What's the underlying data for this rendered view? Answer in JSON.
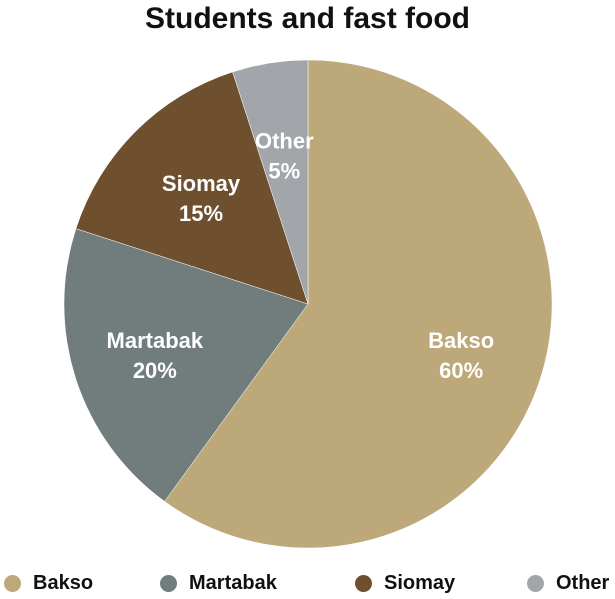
{
  "chart_data": {
    "type": "pie",
    "title": "Students and fast food",
    "categories": [
      "Bakso",
      "Martabak",
      "Siomay",
      "Other"
    ],
    "values": [
      60,
      20,
      15,
      5
    ],
    "value_labels": [
      "60%",
      "20%",
      "15%",
      "5%"
    ],
    "colors": [
      "#BCA879",
      "#717C7C",
      "#6E4F2E",
      "#A2A5AA"
    ],
    "start_angle": "12 o'clock",
    "direction": "clockwise",
    "legend": "bottom"
  }
}
